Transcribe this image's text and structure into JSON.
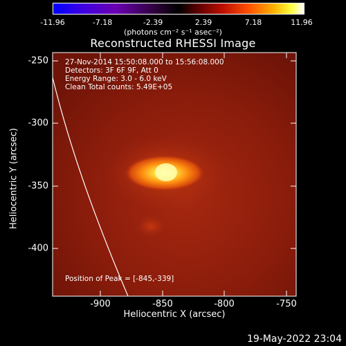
{
  "colorbar": {
    "ticks": [
      "-11.96",
      "-7.18",
      "-2.39",
      "2.39",
      "7.18",
      "11.96"
    ],
    "label": "(photons cm⁻² s⁻¹ asec⁻²)",
    "min": -11.96,
    "max": 11.96
  },
  "title": "Reconstructed RHESSI Image",
  "info": {
    "line1": "27-Nov-2014 15:50:08.000 to 15:56:08.000",
    "line2": "Detectors: 3F 6F 9F, Att 0",
    "line3": "Energy Range: 3.0 - 6.0 keV",
    "line4": "Clean    Total counts: 5.49E+05"
  },
  "peak_text": "Position of Peak = [-845,-339]",
  "x_axis": {
    "label": "Heliocentric X (arcsec)",
    "ticks": [
      "-900",
      "-850",
      "-800",
      "-750"
    ],
    "range": [
      -940,
      -745
    ]
  },
  "y_axis": {
    "label": "Heliocentric Y (arcsec)",
    "ticks": [
      "-250",
      "-300",
      "-350",
      "-400"
    ],
    "range": [
      -435,
      -240
    ]
  },
  "timestamp": "19-May-2022 23:04",
  "colors": {
    "background": "#000000",
    "image_base": "#8b1a0a",
    "peak": "#ffff80",
    "limb": "#ffffff"
  }
}
